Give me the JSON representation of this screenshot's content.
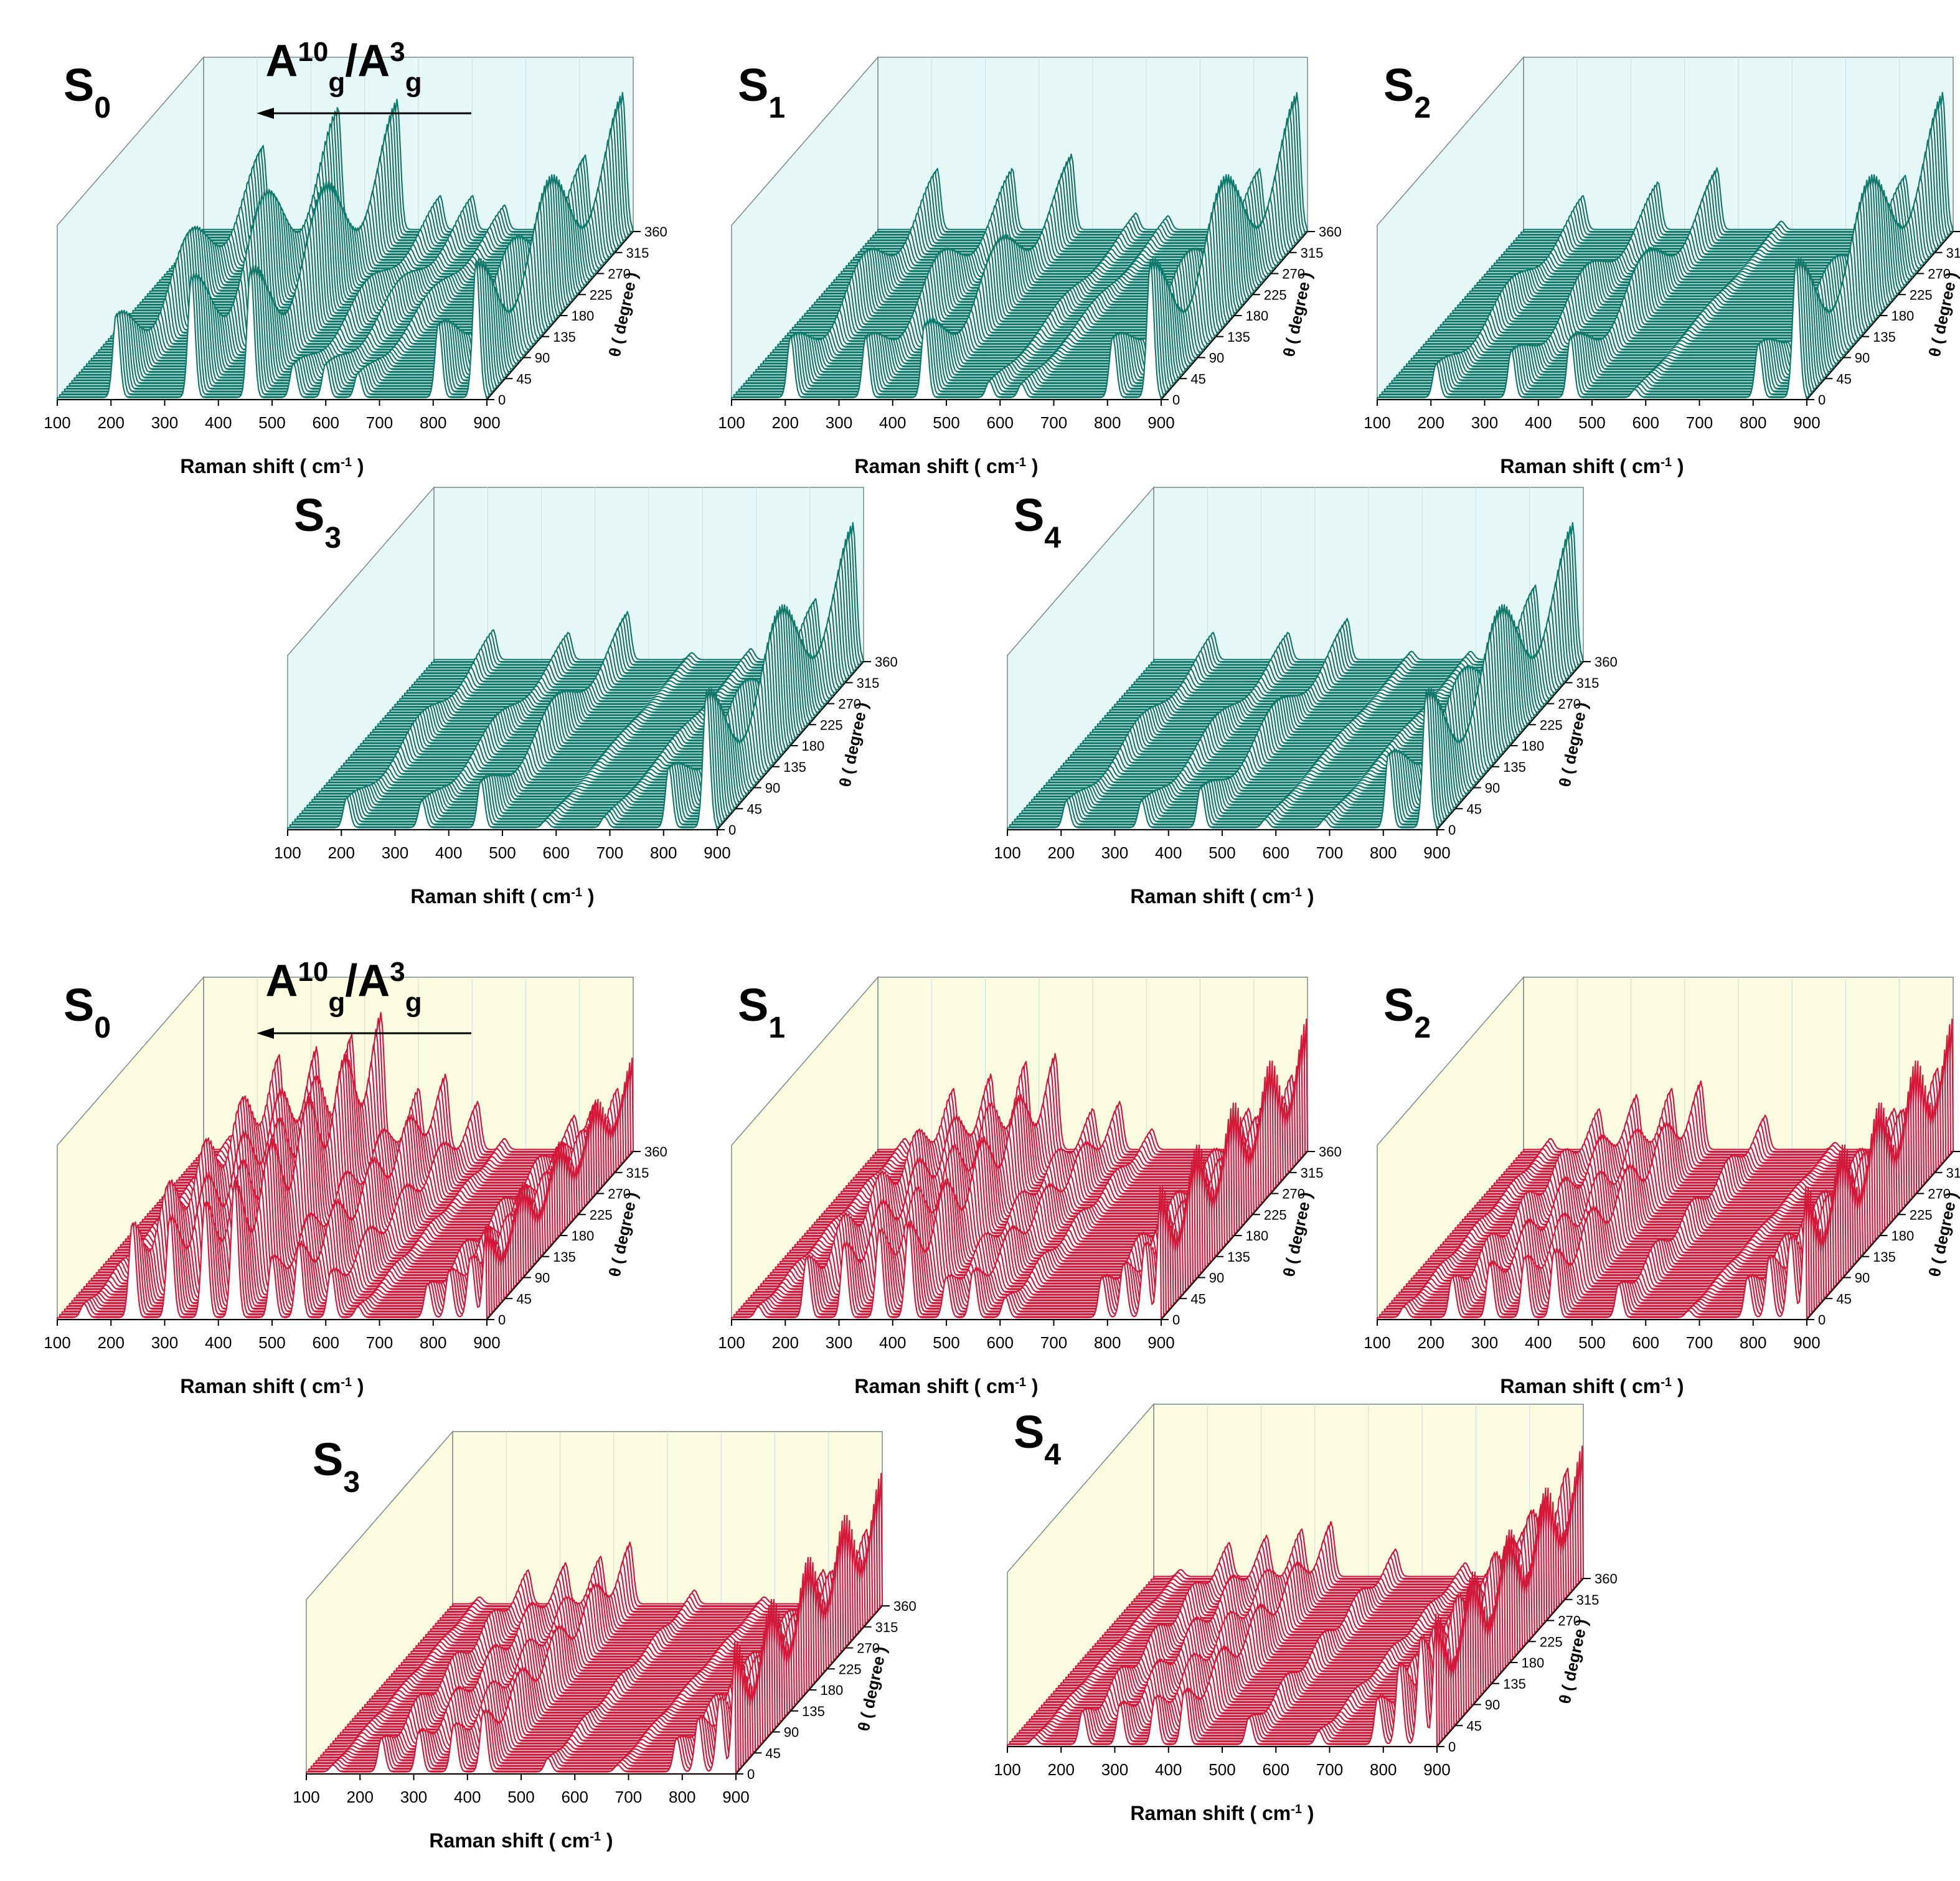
{
  "figure": {
    "x_tick_labels": [
      "100",
      "200",
      "300",
      "400",
      "500",
      "600",
      "700",
      "800",
      "900"
    ],
    "angle_tick_labels": [
      "0",
      "45",
      "90",
      "135",
      "180",
      "225",
      "270",
      "315",
      "360"
    ],
    "angle_axis_title": "θ ( degree )"
  },
  "chart_data": [
    {
      "type": "line",
      "style": "waterfall-3d",
      "group": "teal",
      "title": "S0",
      "annotation": "Ag10/Ag3",
      "xlabel": "Raman shift ( cm-1 )",
      "ylabel": "θ ( degree )",
      "xlim": [
        100,
        900
      ],
      "ylim": [
        0,
        360
      ],
      "x_ticks": [
        100,
        200,
        300,
        400,
        500,
        600,
        700,
        800,
        900
      ],
      "y_ticks": [
        0,
        45,
        90,
        135,
        180,
        225,
        270,
        315,
        360
      ],
      "peaks": [
        {
          "x": 210,
          "height": 0.62,
          "mode": 1
        },
        {
          "x": 350,
          "height": 0.9,
          "mode": 1
        },
        {
          "x": 460,
          "height": 0.95,
          "mode": 1
        },
        {
          "x": 540,
          "height": 0.25,
          "mode": 1
        },
        {
          "x": 600,
          "height": 0.25,
          "mode": 1
        },
        {
          "x": 660,
          "height": 0.18,
          "mode": 1
        },
        {
          "x": 810,
          "height": 0.55,
          "mode": 1
        },
        {
          "x": 880,
          "height": 1.0,
          "mode": 1
        }
      ]
    },
    {
      "type": "line",
      "style": "waterfall-3d",
      "group": "teal",
      "title": "S1",
      "xlabel": "Raman shift ( cm-1 )",
      "ylabel": "θ ( degree )",
      "xlim": [
        100,
        900
      ],
      "ylim": [
        0,
        360
      ],
      "peaks": [
        {
          "x": 210,
          "height": 0.45,
          "mode": 1
        },
        {
          "x": 350,
          "height": 0.45,
          "mode": 1
        },
        {
          "x": 460,
          "height": 0.55,
          "mode": 1
        },
        {
          "x": 580,
          "height": 0.12,
          "mode": 1
        },
        {
          "x": 640,
          "height": 0.1,
          "mode": 1
        },
        {
          "x": 810,
          "height": 0.45,
          "mode": 1
        },
        {
          "x": 880,
          "height": 1.0,
          "mode": 1
        }
      ]
    },
    {
      "type": "line",
      "style": "waterfall-3d",
      "group": "teal",
      "title": "S2",
      "xlabel": "Raman shift ( cm-1 )",
      "ylabel": "θ ( degree )",
      "xlim": [
        100,
        900
      ],
      "ylim": [
        0,
        360
      ],
      "peaks": [
        {
          "x": 210,
          "height": 0.25,
          "mode": 1
        },
        {
          "x": 350,
          "height": 0.35,
          "mode": 1
        },
        {
          "x": 460,
          "height": 0.45,
          "mode": 1
        },
        {
          "x": 580,
          "height": 0.06,
          "mode": 1
        },
        {
          "x": 810,
          "height": 0.4,
          "mode": 1
        },
        {
          "x": 880,
          "height": 1.0,
          "mode": 1
        }
      ]
    },
    {
      "type": "line",
      "style": "waterfall-3d",
      "group": "teal",
      "title": "S3",
      "xlabel": "Raman shift ( cm-1 )",
      "ylabel": "θ ( degree )",
      "xlim": [
        100,
        900
      ],
      "ylim": [
        0,
        360
      ],
      "peaks": [
        {
          "x": 210,
          "height": 0.22,
          "mode": 1
        },
        {
          "x": 350,
          "height": 0.2,
          "mode": 1
        },
        {
          "x": 460,
          "height": 0.35,
          "mode": 1
        },
        {
          "x": 580,
          "height": 0.05,
          "mode": 1
        },
        {
          "x": 690,
          "height": 0.08,
          "mode": 1
        },
        {
          "x": 810,
          "height": 0.45,
          "mode": 1
        },
        {
          "x": 880,
          "height": 1.0,
          "mode": 1
        }
      ]
    },
    {
      "type": "line",
      "style": "waterfall-3d",
      "group": "teal",
      "title": "S4",
      "xlabel": "Raman shift ( cm-1 )",
      "ylabel": "θ ( degree )",
      "xlim": [
        100,
        900
      ],
      "ylim": [
        0,
        360
      ],
      "peaks": [
        {
          "x": 210,
          "height": 0.2,
          "mode": 1
        },
        {
          "x": 350,
          "height": 0.2,
          "mode": 1
        },
        {
          "x": 460,
          "height": 0.3,
          "mode": 1
        },
        {
          "x": 580,
          "height": 0.06,
          "mode": 1
        },
        {
          "x": 690,
          "height": 0.06,
          "mode": 1
        },
        {
          "x": 810,
          "height": 0.55,
          "mode": 1
        },
        {
          "x": 880,
          "height": 1.0,
          "mode": 1
        }
      ]
    },
    {
      "type": "line",
      "style": "waterfall-3d",
      "group": "red",
      "title": "S0",
      "annotation": "Ag10/Ag3",
      "xlabel": "Raman shift ( cm-1 )",
      "ylabel": "θ ( degree )",
      "xlim": [
        100,
        900
      ],
      "ylim": [
        0,
        360
      ],
      "peaks": [
        {
          "x": 150,
          "height": 0.1,
          "mode": 2
        },
        {
          "x": 240,
          "height": 0.7,
          "mode": 2
        },
        {
          "x": 310,
          "height": 0.75,
          "mode": 2
        },
        {
          "x": 375,
          "height": 0.85,
          "mode": 2
        },
        {
          "x": 430,
          "height": 1.0,
          "mode": 2
        },
        {
          "x": 500,
          "height": 0.45,
          "mode": 2
        },
        {
          "x": 550,
          "height": 0.55,
          "mode": 2
        },
        {
          "x": 610,
          "height": 0.35,
          "mode": 2
        },
        {
          "x": 660,
          "height": 0.08,
          "mode": 2
        },
        {
          "x": 790,
          "height": 0.25,
          "mode": 2
        },
        {
          "x": 830,
          "height": 0.35,
          "mode": 2
        },
        {
          "x": 870,
          "height": 0.45,
          "mode": 2
        },
        {
          "x": 900,
          "height": 0.7,
          "mode": 2
        }
      ]
    },
    {
      "type": "line",
      "style": "waterfall-3d",
      "group": "red",
      "title": "S1",
      "xlabel": "Raman shift ( cm-1 )",
      "ylabel": "θ ( degree )",
      "xlim": [
        100,
        900
      ],
      "ylim": [
        0,
        360
      ],
      "peaks": [
        {
          "x": 150,
          "height": 0.08,
          "mode": 2
        },
        {
          "x": 240,
          "height": 0.45,
          "mode": 2
        },
        {
          "x": 310,
          "height": 0.55,
          "mode": 2
        },
        {
          "x": 375,
          "height": 0.65,
          "mode": 2
        },
        {
          "x": 430,
          "height": 0.7,
          "mode": 2
        },
        {
          "x": 500,
          "height": 0.3,
          "mode": 2
        },
        {
          "x": 550,
          "height": 0.35,
          "mode": 2
        },
        {
          "x": 610,
          "height": 0.15,
          "mode": 2
        },
        {
          "x": 790,
          "height": 0.3,
          "mode": 2
        },
        {
          "x": 830,
          "height": 0.4,
          "mode": 2
        },
        {
          "x": 870,
          "height": 0.55,
          "mode": 2
        },
        {
          "x": 900,
          "height": 1.0,
          "mode": 2
        }
      ]
    },
    {
      "type": "line",
      "style": "waterfall-3d",
      "group": "red",
      "title": "S2",
      "xlabel": "Raman shift ( cm-1 )",
      "ylabel": "θ ( degree )",
      "xlim": [
        100,
        900
      ],
      "ylim": [
        0,
        360
      ],
      "peaks": [
        {
          "x": 150,
          "height": 0.08,
          "mode": 2
        },
        {
          "x": 240,
          "height": 0.3,
          "mode": 2
        },
        {
          "x": 310,
          "height": 0.4,
          "mode": 2
        },
        {
          "x": 375,
          "height": 0.45,
          "mode": 2
        },
        {
          "x": 430,
          "height": 0.5,
          "mode": 2
        },
        {
          "x": 550,
          "height": 0.25,
          "mode": 2
        },
        {
          "x": 680,
          "height": 0.05,
          "mode": 2
        },
        {
          "x": 790,
          "height": 0.3,
          "mode": 2
        },
        {
          "x": 830,
          "height": 0.45,
          "mode": 2
        },
        {
          "x": 870,
          "height": 0.6,
          "mode": 2
        },
        {
          "x": 900,
          "height": 1.0,
          "mode": 2
        }
      ]
    },
    {
      "type": "line",
      "style": "waterfall-3d",
      "group": "red",
      "title": "S3",
      "xlabel": "Raman shift ( cm-1 )",
      "ylabel": "θ ( degree )",
      "xlim": [
        100,
        900
      ],
      "ylim": [
        0,
        360
      ],
      "peaks": [
        {
          "x": 150,
          "height": 0.05,
          "mode": 2
        },
        {
          "x": 240,
          "height": 0.25,
          "mode": 2
        },
        {
          "x": 310,
          "height": 0.3,
          "mode": 2
        },
        {
          "x": 375,
          "height": 0.35,
          "mode": 2
        },
        {
          "x": 430,
          "height": 0.45,
          "mode": 2
        },
        {
          "x": 550,
          "height": 0.1,
          "mode": 2
        },
        {
          "x": 680,
          "height": 0.05,
          "mode": 2
        },
        {
          "x": 790,
          "height": 0.25,
          "mode": 2
        },
        {
          "x": 830,
          "height": 0.4,
          "mode": 2
        },
        {
          "x": 870,
          "height": 0.55,
          "mode": 2
        },
        {
          "x": 900,
          "height": 1.0,
          "mode": 2
        }
      ]
    },
    {
      "type": "line",
      "style": "waterfall-3d",
      "group": "red",
      "title": "S4",
      "xlabel": "Raman shift ( cm-1 )",
      "ylabel": "θ ( degree )",
      "xlim": [
        100,
        900
      ],
      "ylim": [
        0,
        360
      ],
      "peaks": [
        {
          "x": 150,
          "height": 0.05,
          "mode": 2
        },
        {
          "x": 240,
          "height": 0.25,
          "mode": 2
        },
        {
          "x": 310,
          "height": 0.3,
          "mode": 2
        },
        {
          "x": 375,
          "height": 0.35,
          "mode": 2
        },
        {
          "x": 430,
          "height": 0.4,
          "mode": 2
        },
        {
          "x": 550,
          "height": 0.2,
          "mode": 2
        },
        {
          "x": 680,
          "height": 0.1,
          "mode": 2
        },
        {
          "x": 790,
          "height": 0.35,
          "mode": 2
        },
        {
          "x": 830,
          "height": 0.6,
          "mode": 2
        },
        {
          "x": 870,
          "height": 0.8,
          "mode": 2
        },
        {
          "x": 900,
          "height": 1.0,
          "mode": 2
        }
      ]
    }
  ],
  "colors": {
    "teal_line": "#0f7a6c",
    "teal_wall": "#e6f7f7",
    "red_line": "#d2193a",
    "red_wall": "#fcfce0",
    "axis": "#000000",
    "wall_edge": "#7a8a8a"
  }
}
